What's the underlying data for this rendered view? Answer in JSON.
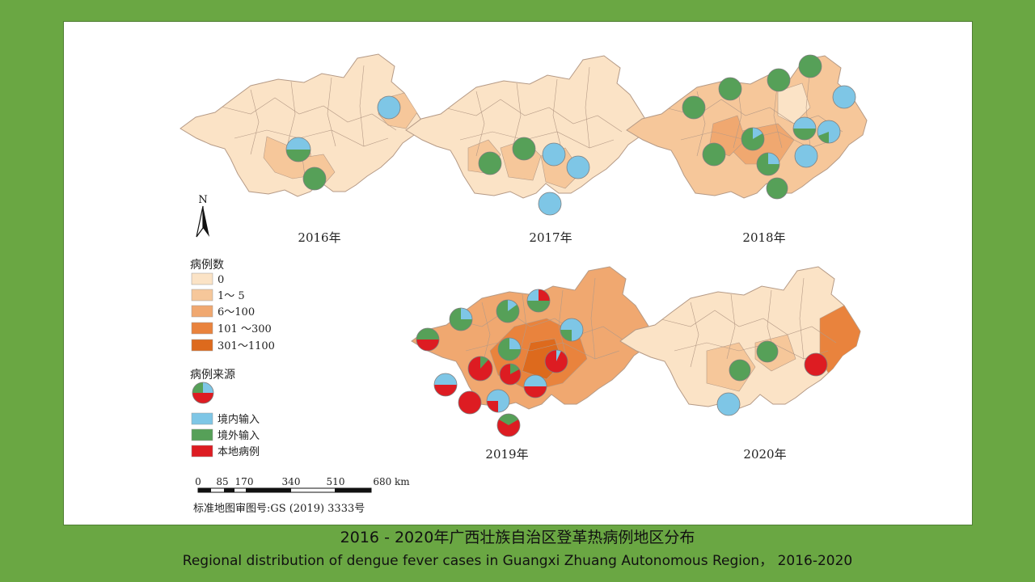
{
  "figure": {
    "north_label": "N",
    "panels": [
      {
        "year_label": "2016年"
      },
      {
        "year_label": "2017年"
      },
      {
        "year_label": "2018年"
      },
      {
        "year_label": "2019年"
      },
      {
        "year_label": "2020年"
      }
    ],
    "legend": {
      "cases_title": "病例数",
      "case_classes": [
        {
          "label": "0",
          "color": "#fbe3c6"
        },
        {
          "label": "1～ 5",
          "color": "#f6c79a"
        },
        {
          "label": "6～100",
          "color": "#f0a870"
        },
        {
          "label": "101 ～300",
          "color": "#e9833d"
        },
        {
          "label": "301～1100",
          "color": "#dd6a1d"
        }
      ],
      "source_title": "病例来源",
      "sources": [
        {
          "label": "境内输入",
          "color": "#7ec6e6"
        },
        {
          "label": "境外输入",
          "color": "#56a058"
        },
        {
          "label": "本地病例",
          "color": "#dd1c22"
        }
      ]
    },
    "scale_bar": {
      "ticks": [
        "0",
        "85",
        "170",
        "340",
        "510",
        "680 km"
      ]
    },
    "map_approval": "标准地图审图号:GS (2019) 3333号"
  },
  "caption": {
    "zh": "2016 - 2020年广西壮族自治区登革热病例地区分布",
    "en": "Regional distribution of dengue fever cases in Guangxi Zhuang Autonomous Region， 2016-2020"
  }
}
